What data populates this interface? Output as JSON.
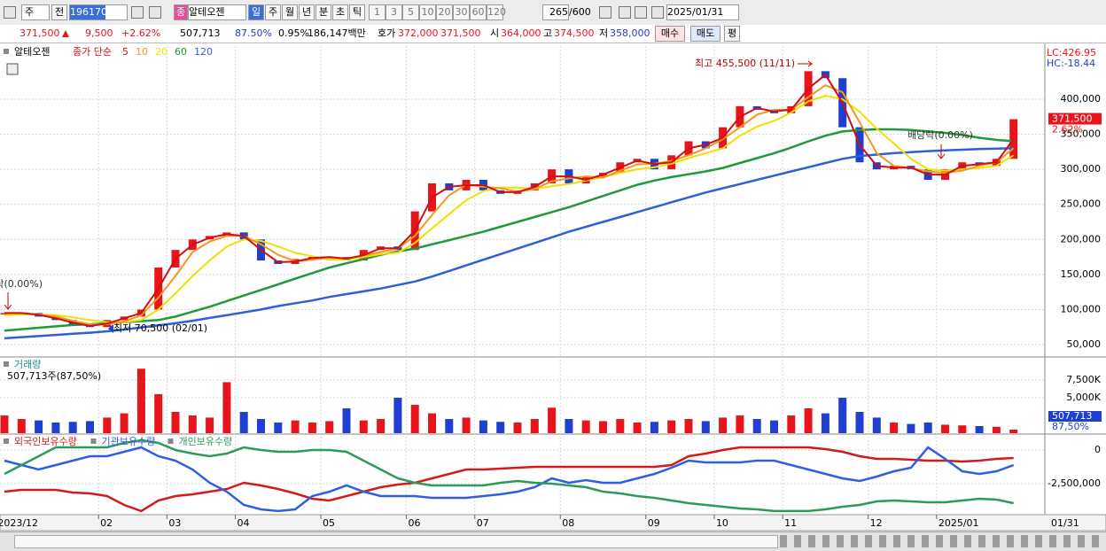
{
  "toolbar": {
    "period_unit": "주",
    "prev": "전",
    "code": "196170",
    "badge": "종",
    "name": "알테오젠",
    "periods": [
      "일",
      "주",
      "월",
      "년",
      "분",
      "초",
      "틱"
    ],
    "intervals": [
      "1",
      "3",
      "5",
      "10",
      "20",
      "30",
      "60",
      "120"
    ],
    "count": "265",
    "max": "/600",
    "date": "2025/01/31"
  },
  "quote": {
    "price": "371,500",
    "change": "9,500",
    "change_rate": "+2.62%",
    "volume": "507,713",
    "volume_ratio": "87.50%",
    "turnover": "0.95%",
    "amount": "186,147백만",
    "ask_label": "호가",
    "ask": "372,000",
    "bid": "371,500",
    "open_label": "시",
    "open": "364,000",
    "high_label": "고",
    "high": "374,500",
    "low_label": "저",
    "low": "358,000",
    "buy": "매수",
    "sell": "매도",
    "avg": "평"
  },
  "x_axis": {
    "categories": [
      "2023/12",
      null,
      null,
      null,
      null,
      null,
      "02",
      null,
      null,
      null,
      "03",
      null,
      null,
      null,
      "04",
      null,
      null,
      null,
      null,
      "05",
      null,
      null,
      null,
      null,
      "06",
      null,
      null,
      null,
      "07",
      null,
      null,
      null,
      null,
      "08",
      null,
      null,
      null,
      null,
      "09",
      null,
      null,
      null,
      "10",
      null,
      null,
      null,
      "11",
      null,
      null,
      null,
      null,
      "12",
      null,
      null,
      null,
      "2025/01",
      null,
      null,
      null,
      null
    ],
    "end": "01/31"
  },
  "chart_data": [
    {
      "type": "candlestick",
      "name": "알테오젠",
      "legend_prefix": "종가 단순",
      "lc": "LC:426.95",
      "hc": "HC:-18.44",
      "last_change": "2.62%",
      "annotations": {
        "high": "최고 455,500 (11/11)",
        "low": "최저 70,500 (02/01)",
        "ex_dividend": "배당락(0.00%)"
      },
      "up_color": "#e8141c",
      "down_color": "#1f3fd0",
      "open": [
        93000,
        95000,
        95000,
        90000,
        85000,
        78000,
        75000,
        85000,
        90000,
        100000,
        160000,
        185000,
        200000,
        205000,
        210000,
        200000,
        170000,
        165000,
        172000,
        175000,
        175000,
        170000,
        185000,
        190000,
        185000,
        240000,
        280000,
        270000,
        285000,
        270000,
        265000,
        270000,
        280000,
        300000,
        280000,
        290000,
        295000,
        310000,
        315000,
        300000,
        320000,
        340000,
        330000,
        360000,
        390000,
        385000,
        380000,
        390000,
        440000,
        430000,
        360000,
        310000,
        300000,
        305000,
        300000,
        285000,
        300000,
        310000,
        305000,
        315000
      ],
      "close": [
        95000,
        95000,
        90000,
        85000,
        78000,
        75000,
        85000,
        90000,
        100000,
        160000,
        185000,
        200000,
        205000,
        210000,
        200000,
        170000,
        165000,
        172000,
        175000,
        175000,
        170000,
        185000,
        190000,
        185000,
        240000,
        280000,
        270000,
        285000,
        270000,
        265000,
        270000,
        280000,
        300000,
        280000,
        290000,
        295000,
        310000,
        315000,
        300000,
        320000,
        340000,
        330000,
        360000,
        390000,
        385000,
        380000,
        390000,
        440000,
        430000,
        360000,
        310000,
        300000,
        305000,
        300000,
        285000,
        300000,
        310000,
        305000,
        315000,
        371500
      ],
      "series": [
        {
          "name": "5",
          "color": "#d01010",
          "values": [
            95000,
            95000,
            92500,
            87500,
            81500,
            76500,
            80000,
            87500,
            95000,
            130000,
            172500,
            192500,
            202500,
            207500,
            205000,
            185000,
            167500,
            168500,
            173500,
            175000,
            172500,
            177500,
            187500,
            187500,
            212500,
            260000,
            275000,
            277500,
            277500,
            267500,
            267500,
            275000,
            290000,
            290000,
            285000,
            292500,
            302500,
            312500,
            307500,
            310000,
            330000,
            335000,
            345000,
            375000,
            387500,
            382500,
            385000,
            415000,
            435000,
            395000,
            335000,
            305000,
            302500,
            302500,
            292500,
            292500,
            305000,
            307500,
            310000,
            343000
          ]
        },
        {
          "name": "10",
          "color": "#f5961e",
          "values": [
            95000,
            95000,
            93000,
            90000,
            84000,
            79000,
            79000,
            83000,
            92000,
            117000,
            148000,
            182000,
            197000,
            205000,
            205000,
            193000,
            178000,
            169000,
            171000,
            174000,
            173000,
            177000,
            182000,
            187000,
            205000,
            235000,
            263000,
            278000,
            275000,
            273000,
            268000,
            272000,
            283000,
            287000,
            290000,
            288000,
            298000,
            307000,
            308000,
            312000,
            320000,
            330000,
            343000,
            360000,
            378000,
            385000,
            385000,
            403000,
            420000,
            410000,
            367000,
            323000,
            305000,
            302000,
            297000,
            295000,
            298000,
            305000,
            310000,
            330000
          ]
        },
        {
          "name": "20",
          "color": "#f0e000",
          "values": [
            92000,
            93000,
            93000,
            92000,
            89000,
            85000,
            82000,
            82000,
            85000,
            100000,
            123000,
            148000,
            170000,
            190000,
            200000,
            198000,
            190000,
            181000,
            176000,
            171000,
            171000,
            175000,
            179000,
            181000,
            195000,
            216000,
            236000,
            256000,
            269000,
            274000,
            274000,
            272000,
            276000,
            279000,
            284000,
            289000,
            295000,
            300000,
            303000,
            308000,
            316000,
            323000,
            330000,
            348000,
            361000,
            369000,
            381000,
            397000,
            405000,
            400000,
            382000,
            358000,
            337000,
            315000,
            300000,
            298000,
            300000,
            302000,
            305000,
            320000
          ]
        },
        {
          "name": "60",
          "color": "#1e9a3a",
          "values": [
            70000,
            72000,
            74000,
            76000,
            78000,
            79000,
            80500,
            82000,
            83500,
            85000,
            90000,
            97000,
            104000,
            112000,
            120000,
            128000,
            136000,
            144000,
            152000,
            160000,
            166000,
            172000,
            178000,
            183000,
            187000,
            193000,
            199000,
            205000,
            211000,
            218000,
            225000,
            232000,
            239000,
            246000,
            254000,
            262000,
            270000,
            278000,
            284000,
            289000,
            293000,
            297000,
            302000,
            309000,
            316000,
            323000,
            331000,
            340000,
            348000,
            354000,
            356000,
            357000,
            357000,
            356000,
            354000,
            352000,
            349000,
            345000,
            342000,
            340000
          ]
        },
        {
          "name": "120",
          "color": "#2f5fd8",
          "values": [
            59000,
            60600,
            62200,
            63800,
            65400,
            67000,
            69000,
            71500,
            74500,
            77500,
            80500,
            84000,
            88000,
            92000,
            96000,
            100000,
            105000,
            109000,
            113000,
            118000,
            122000,
            126000,
            130000,
            135000,
            140000,
            147000,
            155000,
            163000,
            171000,
            179000,
            187000,
            195000,
            203000,
            211000,
            218000,
            225000,
            232000,
            239000,
            246000,
            253000,
            260000,
            267000,
            273000,
            279000,
            285000,
            291000,
            297000,
            303000,
            309000,
            315000,
            319000,
            321000,
            323000,
            324500,
            326000,
            327000,
            328000,
            329000,
            329500,
            330000
          ]
        }
      ],
      "ylim": [
        33600,
        475800
      ],
      "yticks": [
        {
          "value": 50000,
          "label": "50,000"
        },
        {
          "value": 100000,
          "label": "100,000"
        },
        {
          "value": 150000,
          "label": "150,000"
        },
        {
          "value": 200000,
          "label": "200,000"
        },
        {
          "value": 250000,
          "label": "250,000"
        },
        {
          "value": 300000,
          "label": "300,000"
        },
        {
          "value": 350000,
          "label": "350,000"
        },
        {
          "value": 400000,
          "label": "400,000"
        }
      ],
      "grid": true
    },
    {
      "type": "bar",
      "title": "거래량",
      "subtitle": "507,713주(87,50%)",
      "last_label": "507,713",
      "last_ratio": "87,50%",
      "values": [
        2500,
        2000,
        1800,
        1500,
        1600,
        1700,
        2200,
        2800,
        9100,
        5500,
        3000,
        2500,
        2200,
        7200,
        3000,
        2000,
        1500,
        1800,
        1500,
        1700,
        3500,
        1800,
        2000,
        5000,
        4000,
        2800,
        2000,
        2200,
        1800,
        1600,
        1500,
        2000,
        3600,
        2000,
        1800,
        1700,
        2000,
        1500,
        1600,
        1800,
        2000,
        1700,
        2200,
        2500,
        2000,
        1800,
        2500,
        3500,
        2800,
        5000,
        3000,
        2200,
        1500,
        1300,
        1500,
        1200,
        1100,
        1000,
        900,
        507.713
      ],
      "ylim": [
        0,
        10375
      ],
      "yticks": [
        {
          "value": 5000,
          "label": "5,000K"
        },
        {
          "value": 7500,
          "label": "7,500K"
        }
      ],
      "grid": true
    },
    {
      "type": "line",
      "series": [
        {
          "name": "외국인보유수량",
          "color": "#d41a1a",
          "values": [
            -3092000,
            -2960000,
            -2960000,
            -2960000,
            -3158000,
            -3224000,
            -3421000,
            -4079000,
            -4539000,
            -3750000,
            -3421000,
            -3289000,
            -3092000,
            -2895000,
            -2434000,
            -2632000,
            -2895000,
            -3224000,
            -3618000,
            -3750000,
            -3421000,
            -3092000,
            -2763000,
            -2566000,
            -2434000,
            -2105000,
            -1776000,
            -1447000,
            -1447000,
            -1382000,
            -1316000,
            -1250000,
            -1250000,
            -1250000,
            -1250000,
            -1250000,
            -1250000,
            -1250000,
            -1250000,
            -1118000,
            -461000,
            -263000,
            0,
            197000,
            197000,
            197000,
            197000,
            197000,
            66000,
            -132000,
            -461000,
            -658000,
            -658000,
            -724000,
            -789000,
            -789000,
            -855000,
            -789000,
            -658000,
            -592000
          ]
        },
        {
          "name": "기관보유수량",
          "color": "#2f5fe0",
          "values": [
            -789000,
            -1118000,
            -1447000,
            -1118000,
            -789000,
            -461000,
            -461000,
            -132000,
            197000,
            -461000,
            -789000,
            -1447000,
            -2434000,
            -3092000,
            -4079000,
            -4408000,
            -4539000,
            -4408000,
            -3421000,
            -3092000,
            -2632000,
            -3092000,
            -3421000,
            -3421000,
            -3421000,
            -3553000,
            -3553000,
            -3553000,
            -3421000,
            -3289000,
            -3092000,
            -2763000,
            -2105000,
            -2434000,
            -2237000,
            -2434000,
            -2434000,
            -2105000,
            -1776000,
            -1316000,
            -789000,
            -921000,
            -921000,
            -921000,
            -789000,
            -789000,
            -1118000,
            -1447000,
            -1776000,
            -2105000,
            -2303000,
            -1974000,
            -1579000,
            -1316000,
            197000,
            -658000,
            -1579000,
            -1776000,
            -1579000,
            -1118000
          ]
        },
        {
          "name": "개인보유수량",
          "color": "#2e9a5a",
          "values": [
            -1776000,
            -1118000,
            -461000,
            197000,
            197000,
            197000,
            197000,
            526000,
            724000,
            526000,
            0,
            -263000,
            -461000,
            -263000,
            197000,
            0,
            -132000,
            -132000,
            0,
            0,
            -132000,
            -789000,
            -1447000,
            -2105000,
            -2434000,
            -2632000,
            -2632000,
            -2632000,
            -2632000,
            -2434000,
            -2303000,
            -2434000,
            -2500000,
            -2632000,
            -2763000,
            -3092000,
            -3224000,
            -3421000,
            -3553000,
            -3750000,
            -3947000,
            -4079000,
            -4211000,
            -4342000,
            -4408000,
            -4539000,
            -4539000,
            -4539000,
            -4408000,
            -4211000,
            -4079000,
            -3816000,
            -3750000,
            -3816000,
            -3882000,
            -3882000,
            -3750000,
            -3618000,
            -3684000,
            -3947000
          ]
        }
      ],
      "ylim": [
        -4740000,
        990000
      ],
      "yticks": [
        0,
        {
          "value": -2500000,
          "label": "-2,500,000"
        }
      ],
      "grid": true
    }
  ]
}
